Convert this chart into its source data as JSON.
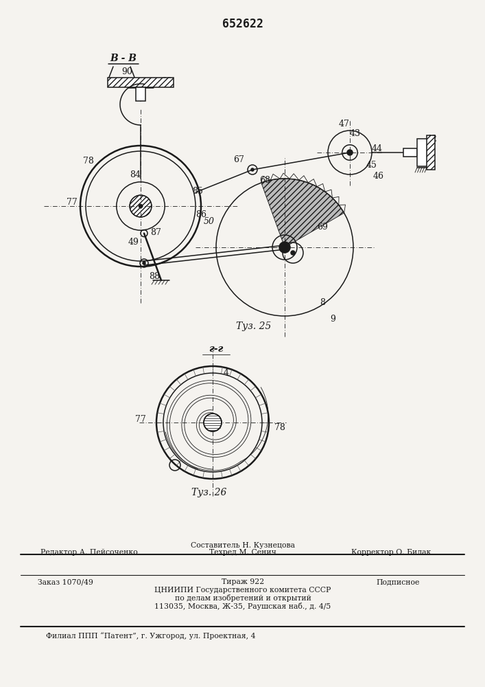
{
  "patent_number": "652622",
  "bg_color": "#f5f3ef",
  "line_color": "#1a1a1a",
  "fig25_label": "Τуз. 25",
  "fig26_label": "Τуз. 26",
  "section_top": "В - В",
  "section_bottom": "г-г",
  "footer_composer": "Составитель Н. Кузнецова",
  "footer_editor": "Редактор А. Пейсоченко",
  "footer_techred": "Техред М. Сенич",
  "footer_corrector": "Корректор О. Билак",
  "footer_order": "Заказ 1070/49",
  "footer_tiraz": "Тираж 922",
  "footer_podp": "Подписное",
  "footer_org": "ЦНИИПИ Государственного комитета СССР",
  "footer_affairs": "по делам изобретений и открытий",
  "footer_addr": "113035, Москва, Ж-35, Раушская наб., д. 4/5",
  "footer_filial": "Филиал ППП “Патент”, г. Ужгород, ул. Проектная, 4"
}
